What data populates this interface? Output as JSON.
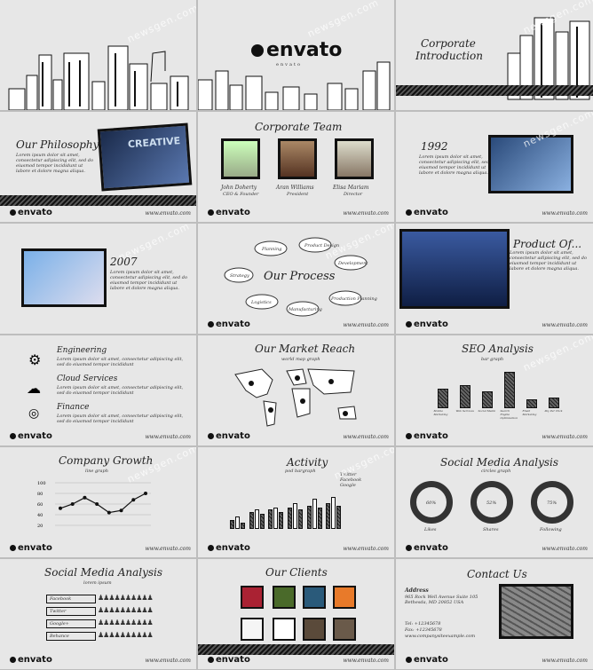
{
  "watermark": "newsgen.com",
  "website": "www.envato.com",
  "brand": "envato",
  "s1": {},
  "s2": {
    "logo": "envato",
    "tagline": "envato"
  },
  "s3": {
    "title_line1": "Corporate",
    "title_line2": "Introduction"
  },
  "s4": {
    "title": "Our Philosophy",
    "body": "Lorem ipsum dolor sit amet, consectetur adipiscing elit, sed do eiusmod tempor incididunt ut labore et dolore magna aliqua.",
    "photo_text": "CREATIVE"
  },
  "s5": {
    "title": "Corporate Team",
    "members": [
      {
        "name": "John Doherty",
        "role": "CEO & Founder"
      },
      {
        "name": "Aran Williams",
        "role": "President"
      },
      {
        "name": "Elisa Mariam",
        "role": "Director"
      }
    ]
  },
  "s6": {
    "year": "1992",
    "body": "Lorem ipsum dolor sit amet, consectetur adipiscing elit, sed do eiusmod tempor incididunt ut labore et dolore magna aliqua."
  },
  "s7": {
    "year": "2007",
    "body": "Lorem ipsum dolor sit amet, consectetur adipiscing elit, sed do eiusmod tempor incididunt ut labore et dolore magna aliqua."
  },
  "s8": {
    "title": "Our Process",
    "steps": [
      "Planning",
      "Product Design",
      "Development",
      "Production Planning",
      "Manufacturing",
      "Logistics",
      "Strategy"
    ]
  },
  "s9": {
    "title": "Product Of...",
    "body": "Lorem ipsum dolor sit amet, consectetur adipiscing elit, sed do eiusmod tempor incididunt ut labore et dolore magna aliqua."
  },
  "s10": {
    "items": [
      {
        "title": "Engineering",
        "icon": "gears-icon",
        "body": "Lorem ipsum dolor sit amet, consectetur adipiscing elit, sed do eiusmod tempor incididunt"
      },
      {
        "title": "Cloud Services",
        "icon": "cloud-icon",
        "body": "Lorem ipsum dolor sit amet, consectetur adipiscing elit, sed do eiusmod tempor incididunt"
      },
      {
        "title": "Finance",
        "icon": "coins-icon",
        "body": "Lorem ipsum dolor sit amet, consectetur adipiscing elit, sed do eiusmod tempor incididunt"
      }
    ]
  },
  "s11": {
    "title": "Our Market Reach",
    "sub": "world map graph"
  },
  "s12": {
    "title": "SEO Analysis",
    "sub": "bar graph"
  },
  "s13": {
    "title": "Company Growth",
    "sub": "line graph"
  },
  "s14": {
    "title": "Activity",
    "sub": "pod bargraph",
    "legend": [
      "Twitter",
      "Facebook",
      "Google"
    ]
  },
  "s15": {
    "title": "Social Media Analysis",
    "sub": "circles graph",
    "rings": [
      {
        "pct": "60%",
        "label": "Likes"
      },
      {
        "pct": "52%",
        "label": "Shares"
      },
      {
        "pct": "75%",
        "label": "Following"
      }
    ]
  },
  "s16": {
    "title": "Social Media Analysis",
    "sub": "lorem ipsum",
    "rows": [
      "Facebook",
      "Twitter",
      "Google+",
      "Behance"
    ]
  },
  "s17": {
    "title": "Our Clients"
  },
  "s18": {
    "title": "Contact Us",
    "address_label": "Address",
    "address": "965 Rock Well Avenue Suite 105 Bethesda, MD 20852 USA",
    "tel": "Tel: +12345678",
    "fax": "Fax: +12345678",
    "email": "www.companysiteexample.com"
  },
  "chart_data": [
    {
      "type": "bar",
      "title": "SEO Analysis",
      "categories": [
        "Mobile Marketing",
        "Web Services",
        "Social Media",
        "Search Engine Optimization",
        "Email Marketing",
        "Pay Per Click"
      ],
      "values": [
        45,
        55,
        40,
        85,
        20,
        25
      ],
      "ylim": [
        0,
        100
      ]
    },
    {
      "type": "line",
      "title": "Company Growth",
      "yticks": [
        "100",
        "80",
        "60",
        "40",
        "20"
      ],
      "x": [
        1,
        2,
        3,
        4,
        5,
        6,
        7,
        8
      ],
      "values": [
        40,
        50,
        65,
        50,
        30,
        35,
        60,
        75
      ],
      "ylim": [
        0,
        100
      ]
    },
    {
      "type": "bar",
      "title": "Activity",
      "series": [
        {
          "name": "Twitter",
          "values": [
            20,
            40,
            45,
            50,
            55,
            60
          ]
        },
        {
          "name": "Facebook",
          "values": [
            30,
            45,
            50,
            60,
            70,
            75
          ]
        },
        {
          "name": "Google",
          "values": [
            15,
            35,
            40,
            45,
            50,
            55
          ]
        }
      ],
      "ylim": [
        0,
        100
      ]
    }
  ]
}
